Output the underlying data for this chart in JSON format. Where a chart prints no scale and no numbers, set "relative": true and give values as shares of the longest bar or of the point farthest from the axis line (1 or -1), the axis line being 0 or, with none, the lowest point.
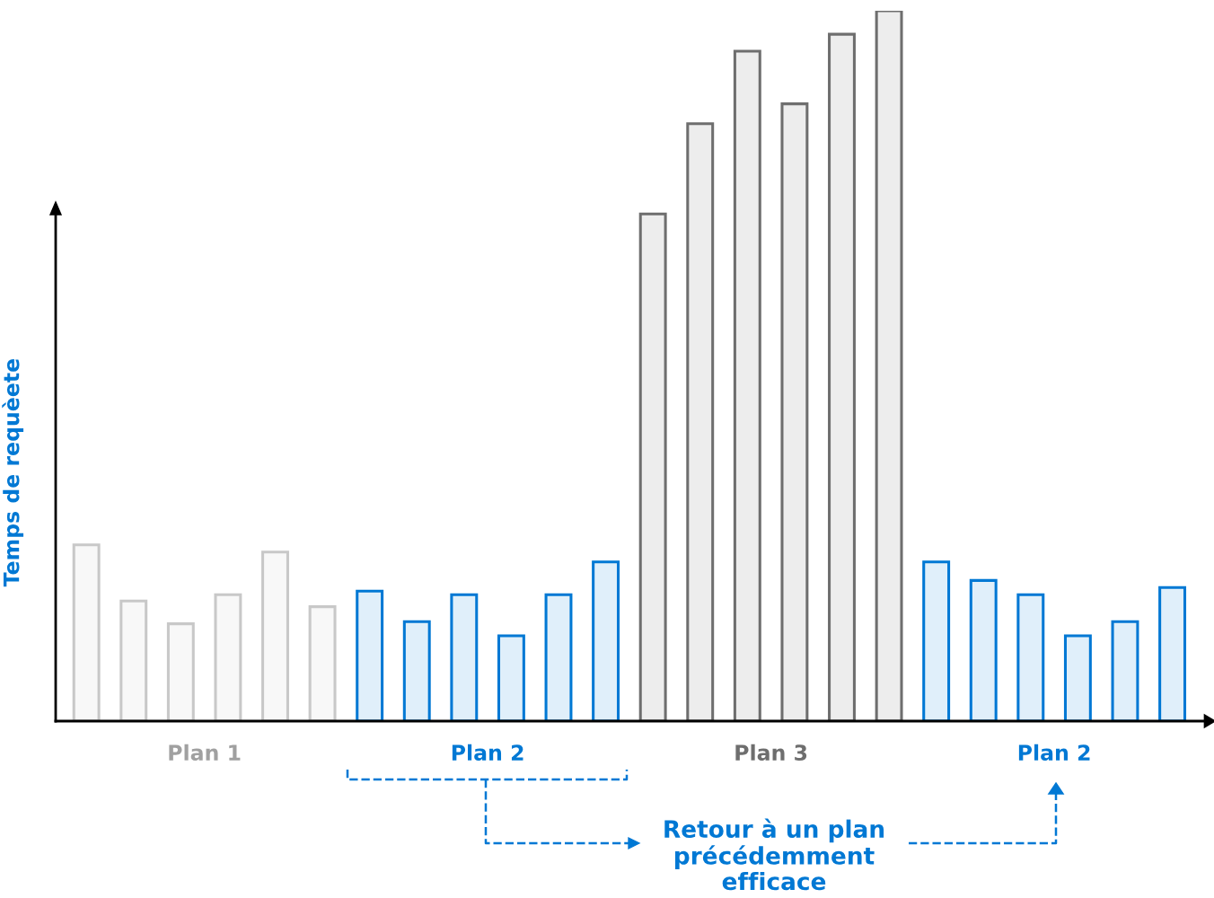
{
  "chart_data": {
    "type": "bar",
    "relative": true,
    "ylabel": "Temps de requèete",
    "categories": [
      null,
      null,
      null,
      null,
      null,
      null,
      null,
      null,
      null,
      null,
      null,
      null,
      null,
      null,
      null,
      null,
      null,
      null,
      null,
      null,
      null,
      null,
      null,
      null
    ],
    "values": [
      0.248,
      0.169,
      0.137,
      0.178,
      0.238,
      0.161,
      0.183,
      0.14,
      0.178,
      0.12,
      0.178,
      0.224,
      0.714,
      0.841,
      0.943,
      0.869,
      0.967,
      1,
      0.224,
      0.198,
      0.178,
      0.12,
      0.14,
      0.188
    ],
    "colors": [
      "#c8c8c8",
      "#c8c8c8",
      "#c8c8c8",
      "#c8c8c8",
      "#c8c8c8",
      "#c8c8c8",
      "#0078d4",
      "#0078d4",
      "#0078d4",
      "#0078d4",
      "#0078d4",
      "#0078d4",
      "#6e6e6e",
      "#6e6e6e",
      "#6e6e6e",
      "#6e6e6e",
      "#6e6e6e",
      "#6e6e6e",
      "#0078d4",
      "#0078d4",
      "#0078d4",
      "#0078d4",
      "#0078d4",
      "#0078d4"
    ],
    "annotations": [
      "Plan 1",
      "Plan 2",
      "Plan 3",
      "Plan 2",
      "Retour à un plan\nprécédemment\nefficace"
    ]
  }
}
